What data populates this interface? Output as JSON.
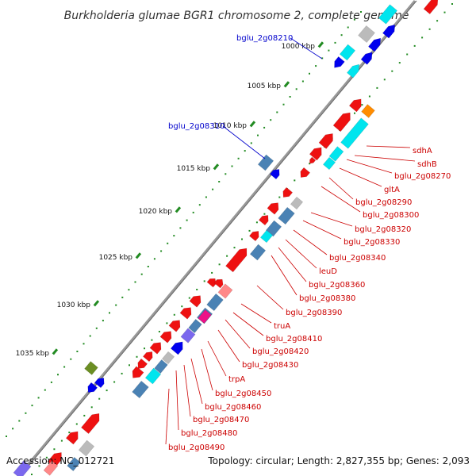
{
  "title": "Burkholderia glumae BGR1 chromosome 2, complete genome",
  "footer": {
    "accession": "Accession: NC_012721",
    "summary": "Topology: circular; Length: 2,827,355 bp; Genes: 2,093"
  },
  "colors": {
    "backbone": "#999999",
    "forward_label": "#cc0000",
    "blue_label": "#0000cc",
    "tick": "#228b22",
    "red": "#ee1111",
    "blue": "#0000ee",
    "cyan": "#00e5ee",
    "steel": "#4a82b4",
    "gray": "#bbbbbb",
    "orange": "#ff8c00",
    "olive": "#6b8e23",
    "magenta": "#ee1188",
    "pink": "#ff8888",
    "violet": "#7b68ee"
  },
  "scale_labels": [
    "1000 kbp",
    "1005 kbp",
    "1010 kbp",
    "1015 kbp",
    "1020 kbp",
    "1025 kbp",
    "1030 kbp",
    "1035 kbp"
  ],
  "blue_gene_labels": [
    "bglu_2g08210",
    "bglu_2g08310"
  ],
  "red_gene_labels": [
    "sdhA",
    "sdhB",
    "bglu_2g08270",
    "gltA",
    "bglu_2g08290",
    "bglu_2g08300",
    "bglu_2g08320",
    "bglu_2g08330",
    "bglu_2g08340",
    "leuD",
    "bglu_2g08360",
    "bglu_2g08380",
    "bglu_2g08390",
    "truA",
    "bglu_2g08410",
    "bglu_2g08420",
    "bglu_2g08430",
    "trpA",
    "bglu_2g08450",
    "bglu_2g08460",
    "bglu_2g08470",
    "bglu_2g08480",
    "bglu_2g08490"
  ]
}
